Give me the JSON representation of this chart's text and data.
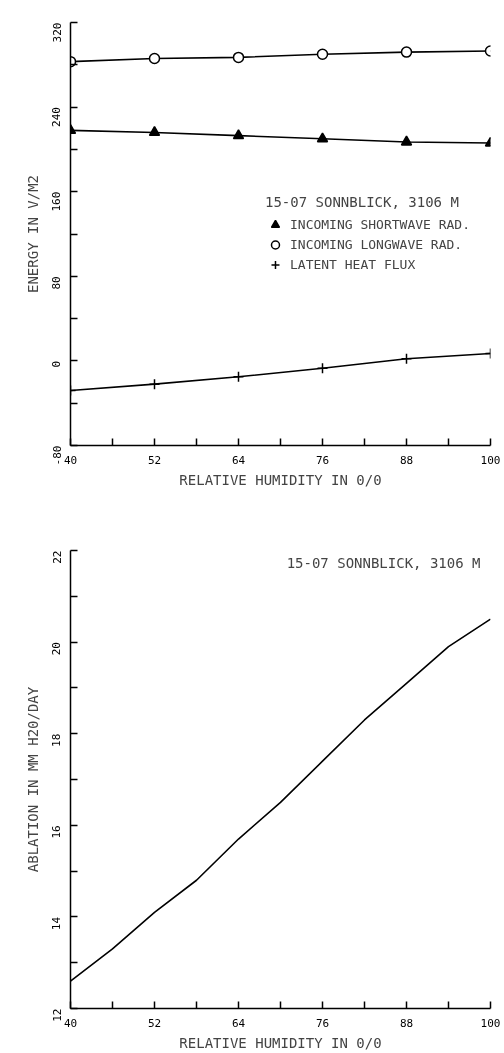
{
  "chart_data": [
    {
      "type": "line",
      "xlabel": "RELATIVE HUMIDITY IN 0/0",
      "ylabel": "ENERGY IN V/M2",
      "legend_title": "15-07 SONNBLICK, 3106 M",
      "x": [
        40,
        52,
        64,
        76,
        88,
        100
      ],
      "series": [
        {
          "name": "INCOMING SHORTWAVE RAD.",
          "color": "#000000",
          "marker": "triangle",
          "values": [
            218,
            216,
            213,
            210,
            207,
            206
          ]
        },
        {
          "name": "INCOMING LONGWAVE RAD.",
          "color": "#000000",
          "marker": "circle",
          "values": [
            283,
            286,
            287,
            290,
            292,
            293
          ]
        },
        {
          "name": "LATENT HEAT FLUX",
          "color": "#000000",
          "marker": "cross",
          "values": [
            -28,
            -22,
            -15,
            -7,
            2,
            7
          ]
        }
      ],
      "xlim": [
        40,
        100
      ],
      "ylim": [
        -80,
        320
      ],
      "xticks": [
        40,
        {
          "value": 46,
          "label": null
        },
        52,
        {
          "value": 58,
          "label": null
        },
        64,
        {
          "value": 70,
          "label": null
        },
        76,
        {
          "value": 82,
          "label": null
        },
        88,
        {
          "value": 94,
          "label": null
        },
        100
      ],
      "yticks": [
        -80,
        {
          "value": -40,
          "label": null
        },
        0,
        {
          "value": 40,
          "label": null
        },
        80,
        {
          "value": 120,
          "label": null
        },
        160,
        {
          "value": 200,
          "label": null
        },
        240,
        {
          "value": 280,
          "label": null
        },
        320
      ],
      "legend": "right",
      "line_style": "solid"
    },
    {
      "type": "line",
      "xlabel": "RELATIVE HUMIDITY IN 0/0",
      "ylabel": "ABLATION IN MM H20/DAY",
      "annotations": [
        "15-07 SONNBLICK, 3106 M"
      ],
      "x": [
        40,
        46,
        52,
        58,
        64,
        70,
        76,
        82,
        88,
        94,
        100
      ],
      "series": [
        {
          "color": "#000000",
          "marker": "none",
          "values": [
            12.6,
            13.3,
            14.1,
            14.8,
            15.7,
            16.5,
            17.4,
            18.3,
            19.1,
            19.9,
            20.5
          ]
        }
      ],
      "xlim": [
        40,
        100
      ],
      "ylim": [
        12,
        22
      ],
      "xticks": [
        40,
        {
          "value": 46,
          "label": null
        },
        52,
        {
          "value": 58,
          "label": null
        },
        64,
        {
          "value": 70,
          "label": null
        },
        76,
        {
          "value": 82,
          "label": null
        },
        88,
        {
          "value": 94,
          "label": null
        },
        100
      ],
      "yticks": [
        12,
        {
          "value": 13,
          "label": null
        },
        14,
        {
          "value": 15,
          "label": null
        },
        16,
        {
          "value": 17,
          "label": null
        },
        18,
        {
          "value": 19,
          "label": null
        },
        20,
        {
          "value": 21,
          "label": null
        },
        22
      ],
      "legend": false,
      "line_style": "solid"
    }
  ]
}
